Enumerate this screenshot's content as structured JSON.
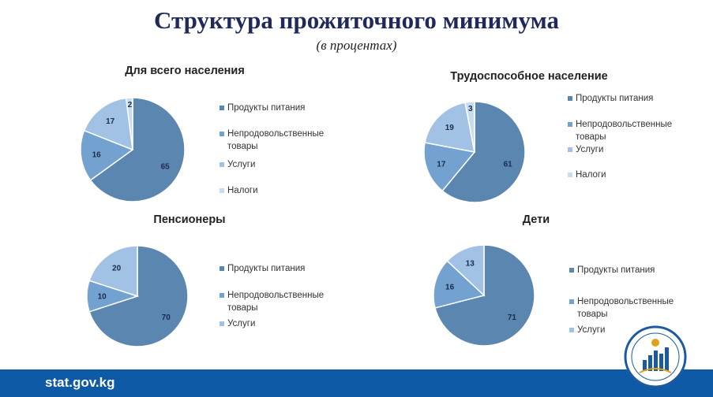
{
  "header": {
    "title": "Структура прожиточного минимума",
    "subtitle": "(в процентах)"
  },
  "footer": {
    "site": "stat.gov.kg"
  },
  "colors": {
    "Продукты питания": "#5b86b0",
    "Непродовольственные товары": "#74a2d0",
    "Услуги": "#a1c1e5",
    "Налоги": "#c8dcf0"
  },
  "chart_data": [
    {
      "type": "pie",
      "title": "Для всего населения",
      "categories": [
        "Продукты питания",
        "Непродовольственные товары",
        "Услуги",
        "Налоги"
      ],
      "values": [
        65,
        16,
        17,
        2
      ],
      "legend": "right"
    },
    {
      "type": "pie",
      "title": "Трудоспособное население",
      "categories": [
        "Продукты питания",
        "Непродовольственные товары",
        "Услуги",
        "Налоги"
      ],
      "values": [
        61,
        17,
        19,
        3
      ],
      "legend": "right"
    },
    {
      "type": "pie",
      "title": "Пенсионеры",
      "categories": [
        "Продукты питания",
        "Непродовольственные товары",
        "Услуги"
      ],
      "values": [
        70,
        10,
        20
      ],
      "legend": "right"
    },
    {
      "type": "pie",
      "title": "Дети",
      "categories": [
        "Продукты питания",
        "Непродовольственные товары",
        "Услуги"
      ],
      "values": [
        71,
        16,
        13
      ],
      "legend": "right"
    }
  ]
}
